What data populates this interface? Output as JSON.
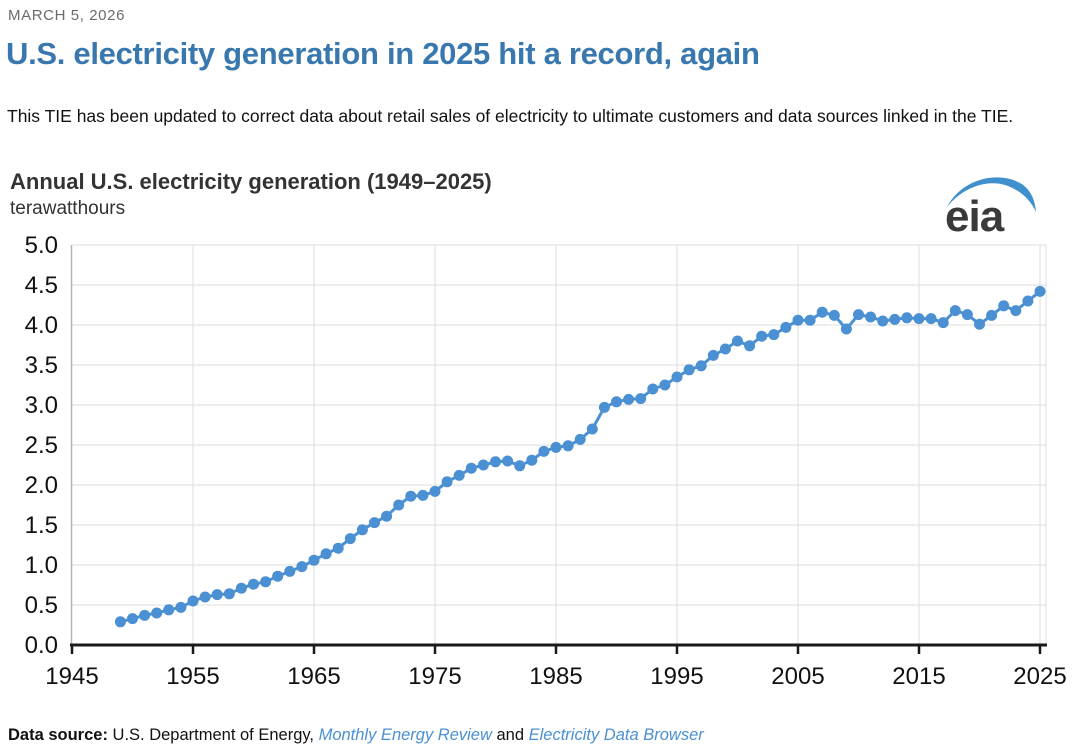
{
  "page": {
    "date": "MARCH 5, 2026",
    "title": "U.S. electricity generation in 2025 hit a record, again",
    "note": "This TIE has been updated to correct data about retail sales of electricity to ultimate customers and data sources linked in the TIE."
  },
  "chart": {
    "title": "Annual U.S. electricity generation (1949–2025)",
    "unit_label": "terawatthours",
    "logo_text": "eia"
  },
  "footer": {
    "label": "Data source:",
    "text_before": " U.S. Department of Energy, ",
    "link1": "Monthly Energy Review",
    "text_middle": " and ",
    "link2": "Electricity Data Browser"
  },
  "colors": {
    "heading_blue": "#3878ae",
    "series_blue": "#4a90d2",
    "link_blue": "#4a90d2",
    "gridline": "#dcdcdc",
    "axis_black": "#1a1a1a",
    "axis_side_gray": "#b3b3b3",
    "date_gray": "#6b6b6b",
    "logo_text": "#3a3a3a",
    "logo_swoosh": "#3f90cc"
  },
  "chart_data": {
    "type": "line",
    "title": "Annual U.S. electricity generation (1949–2025)",
    "xlabel": "",
    "ylabel": "terawatthours",
    "xlim": [
      1945,
      2025
    ],
    "ylim": [
      0.0,
      5.0
    ],
    "grid": true,
    "marker": "circle",
    "x_ticks": [
      1945,
      1955,
      1965,
      1975,
      1985,
      1995,
      2005,
      2015,
      2025
    ],
    "y_ticks": [
      0.0,
      0.5,
      1.0,
      1.5,
      2.0,
      2.5,
      3.0,
      3.5,
      4.0,
      4.5,
      5.0
    ],
    "x": [
      1949,
      1950,
      1951,
      1952,
      1953,
      1954,
      1955,
      1956,
      1957,
      1958,
      1959,
      1960,
      1961,
      1962,
      1963,
      1964,
      1965,
      1966,
      1967,
      1968,
      1969,
      1970,
      1971,
      1972,
      1973,
      1974,
      1975,
      1976,
      1977,
      1978,
      1979,
      1980,
      1981,
      1982,
      1983,
      1984,
      1985,
      1986,
      1987,
      1988,
      1989,
      1990,
      1991,
      1992,
      1993,
      1994,
      1995,
      1996,
      1997,
      1998,
      1999,
      2000,
      2001,
      2002,
      2003,
      2004,
      2005,
      2006,
      2007,
      2008,
      2009,
      2010,
      2011,
      2012,
      2013,
      2014,
      2015,
      2016,
      2017,
      2018,
      2019,
      2020,
      2021,
      2022,
      2023,
      2024,
      2025
    ],
    "values": [
      0.29,
      0.33,
      0.37,
      0.4,
      0.44,
      0.47,
      0.55,
      0.6,
      0.63,
      0.64,
      0.71,
      0.76,
      0.79,
      0.86,
      0.92,
      0.98,
      1.06,
      1.14,
      1.21,
      1.33,
      1.44,
      1.53,
      1.61,
      1.75,
      1.86,
      1.87,
      1.92,
      2.04,
      2.12,
      2.21,
      2.25,
      2.29,
      2.3,
      2.24,
      2.31,
      2.42,
      2.47,
      2.49,
      2.57,
      2.7,
      2.97,
      3.04,
      3.07,
      3.08,
      3.2,
      3.25,
      3.35,
      3.44,
      3.49,
      3.62,
      3.7,
      3.8,
      3.74,
      3.86,
      3.88,
      3.97,
      4.06,
      4.06,
      4.16,
      4.12,
      3.95,
      4.13,
      4.1,
      4.05,
      4.07,
      4.09,
      4.08,
      4.08,
      4.03,
      4.18,
      4.13,
      4.01,
      4.12,
      4.24,
      4.18,
      4.3,
      4.42
    ]
  }
}
